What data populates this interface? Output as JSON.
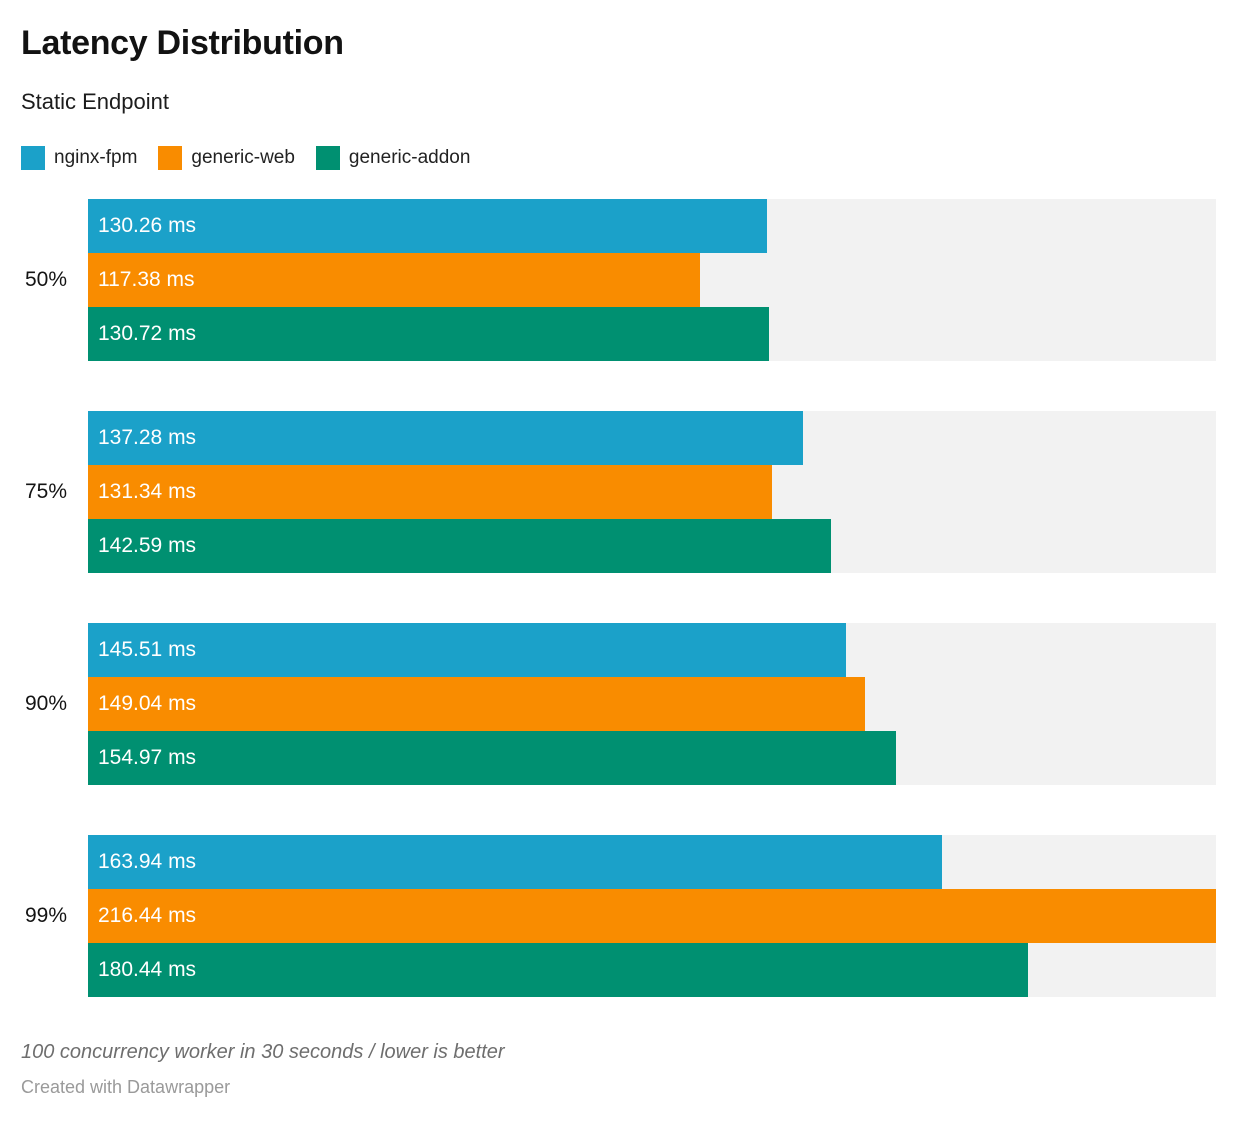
{
  "header": {
    "title": "Latency Distribution",
    "subtitle": "Static Endpoint"
  },
  "chart_data": {
    "type": "bar",
    "orientation": "horizontal",
    "title": "Latency Distribution",
    "subtitle": "Static Endpoint",
    "categories": [
      "50%",
      "75%",
      "90%",
      "99%"
    ],
    "series": [
      {
        "name": "nginx-fpm",
        "color": "#1BA1C9",
        "values": [
          130.26,
          137.28,
          145.51,
          163.94
        ],
        "labels": [
          "130.26 ms",
          "137.28 ms",
          "145.51 ms",
          "163.94 ms"
        ]
      },
      {
        "name": "generic-web",
        "color": "#F98C00",
        "values": [
          117.38,
          131.34,
          149.04,
          216.44
        ],
        "labels": [
          "117.38 ms",
          "131.34 ms",
          "149.04 ms",
          "216.44 ms"
        ]
      },
      {
        "name": "generic-addon",
        "color": "#009071",
        "values": [
          130.72,
          142.59,
          154.97,
          180.44
        ],
        "labels": [
          "130.72 ms",
          "142.59 ms",
          "154.97 ms",
          "180.44 ms"
        ]
      }
    ],
    "value_unit": "ms",
    "xlabel": "",
    "ylabel": "",
    "xmax": 216.44,
    "track_color": "#F2F2F2",
    "grid": false,
    "legend_position": "top",
    "value_labels_inside_bars": true
  },
  "footer": {
    "note": "100 concurrency worker in 30 seconds / lower is better",
    "attribution": "Created with Datawrapper"
  }
}
